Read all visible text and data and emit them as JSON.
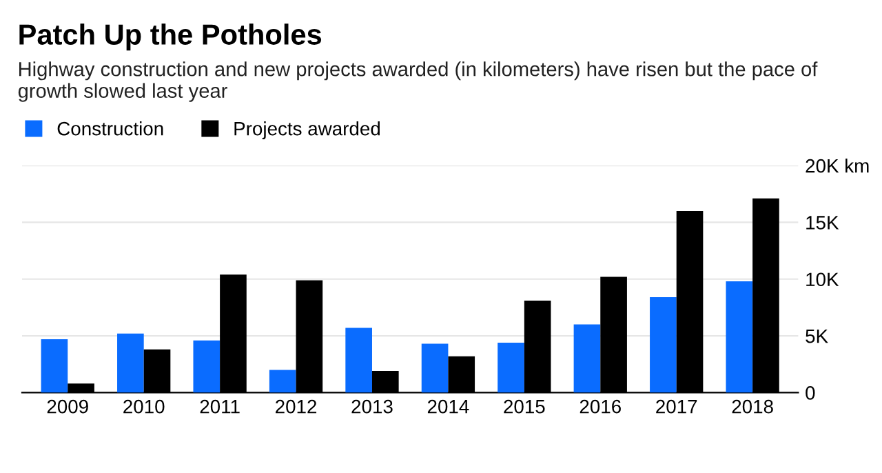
{
  "chart_data": {
    "type": "bar",
    "title": "Patch Up the Potholes",
    "subtitle": "Highway construction and new projects awarded (in kilometers) have risen but the pace of growth slowed last year",
    "categories": [
      "2009",
      "2010",
      "2011",
      "2012",
      "2013",
      "2014",
      "2015",
      "2016",
      "2017",
      "2018"
    ],
    "series": [
      {
        "name": "Construction",
        "color": "#0a6cff",
        "values": [
          4700,
          5200,
          4600,
          2000,
          5700,
          4300,
          4400,
          6000,
          8400,
          9800
        ]
      },
      {
        "name": "Projects awarded",
        "color": "#000000",
        "values": [
          800,
          3800,
          10400,
          9900,
          1900,
          3200,
          8100,
          10200,
          16000,
          17100
        ]
      }
    ],
    "ylim": [
      0,
      20000
    ],
    "yticks": [
      0,
      {
        "value": 5000,
        "label": "5K"
      },
      {
        "value": 10000,
        "label": "10K"
      },
      {
        "value": 15000,
        "label": "15K"
      },
      {
        "value": 20000,
        "label": "20K km"
      }
    ],
    "grid": "y",
    "legend": "top left"
  }
}
